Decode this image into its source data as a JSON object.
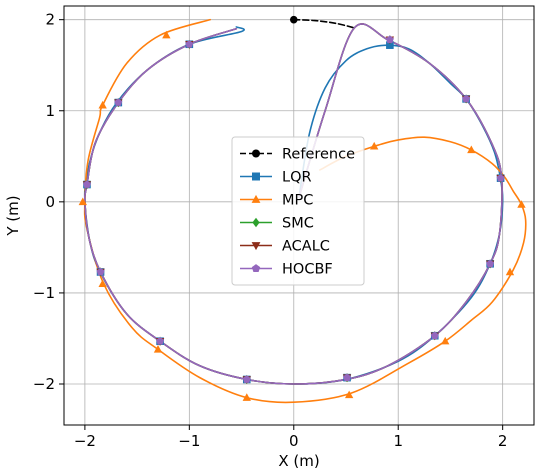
{
  "chart_data": {
    "type": "line",
    "title": "",
    "xlabel": "X (m)",
    "ylabel": "Y (m)",
    "xlim": [
      -2.2,
      2.3
    ],
    "ylim": [
      -2.45,
      2.15
    ],
    "xticks": [
      {
        "value": -2,
        "label": "−2"
      },
      {
        "value": -1,
        "label": "−1"
      },
      {
        "value": 0,
        "label": "0"
      },
      {
        "value": 1,
        "label": "1"
      },
      {
        "value": 2,
        "label": "2"
      }
    ],
    "yticks": [
      {
        "value": -2,
        "label": "−2"
      },
      {
        "value": -1,
        "label": "−1"
      },
      {
        "value": 0,
        "label": "0"
      },
      {
        "value": 1,
        "label": "1"
      },
      {
        "value": 2,
        "label": "2"
      }
    ],
    "grid": true,
    "legend_position": "center",
    "series": [
      {
        "name": "Reference",
        "color": "#000000",
        "dash": "dashed",
        "marker": "circle",
        "points": [
          [
            0.0,
            2.0
          ],
          [
            0.2,
            1.99
          ],
          [
            0.4,
            1.96
          ],
          [
            0.58,
            1.91
          ]
        ],
        "markers": [
          [
            0.0,
            2.0
          ]
        ]
      },
      {
        "name": "LQR",
        "color": "#1f77b4",
        "marker": "square",
        "points": [
          [
            0.05,
            0.05
          ],
          [
            0.15,
            0.75
          ],
          [
            0.3,
            1.25
          ],
          [
            0.5,
            1.55
          ],
          [
            0.7,
            1.68
          ],
          [
            0.9,
            1.72
          ],
          [
            1.1,
            1.68
          ],
          [
            1.3,
            1.52
          ],
          [
            1.5,
            1.3
          ],
          [
            1.65,
            1.13
          ],
          [
            1.8,
            0.85
          ],
          [
            1.92,
            0.55
          ],
          [
            1.98,
            0.25
          ],
          [
            2.0,
            0.0
          ],
          [
            1.97,
            -0.35
          ],
          [
            1.88,
            -0.68
          ],
          [
            1.7,
            -1.05
          ],
          [
            1.35,
            -1.47
          ],
          [
            1.0,
            -1.75
          ],
          [
            0.5,
            -1.95
          ],
          [
            0.0,
            -2.0
          ],
          [
            -0.45,
            -1.95
          ],
          [
            -0.9,
            -1.8
          ],
          [
            -1.28,
            -1.53
          ],
          [
            -1.6,
            -1.23
          ],
          [
            -1.85,
            -0.78
          ],
          [
            -1.95,
            -0.45
          ],
          [
            -2.0,
            0.0
          ],
          [
            -1.98,
            0.3
          ],
          [
            -1.88,
            0.7
          ],
          [
            -1.7,
            1.08
          ],
          [
            -1.4,
            1.45
          ],
          [
            -1.0,
            1.73
          ],
          [
            -0.5,
            1.87
          ],
          [
            -0.55,
            1.92
          ]
        ],
        "markers": [
          [
            0.92,
            1.72
          ],
          [
            1.65,
            1.13
          ],
          [
            1.98,
            0.26
          ],
          [
            1.88,
            -0.68
          ],
          [
            1.35,
            -1.47
          ],
          [
            0.51,
            -1.93
          ],
          [
            -0.45,
            -1.95
          ],
          [
            -1.28,
            -1.53
          ],
          [
            -1.85,
            -0.77
          ],
          [
            -1.98,
            0.19
          ],
          [
            -1.68,
            1.09
          ],
          [
            -1.0,
            1.73
          ]
        ]
      },
      {
        "name": "MPC",
        "color": "#ff7f0e",
        "marker": "triangle",
        "points": [
          [
            0.25,
            0.35
          ],
          [
            0.5,
            0.5
          ],
          [
            0.8,
            0.62
          ],
          [
            1.0,
            0.68
          ],
          [
            1.25,
            0.71
          ],
          [
            1.5,
            0.66
          ],
          [
            1.7,
            0.57
          ],
          [
            1.9,
            0.42
          ],
          [
            2.02,
            0.27
          ],
          [
            2.1,
            0.12
          ],
          [
            2.18,
            -0.03
          ],
          [
            2.22,
            -0.2
          ],
          [
            2.2,
            -0.45
          ],
          [
            2.1,
            -0.75
          ],
          [
            1.9,
            -1.1
          ],
          [
            1.7,
            -1.3
          ],
          [
            1.45,
            -1.53
          ],
          [
            1.1,
            -1.77
          ],
          [
            0.55,
            -2.1
          ],
          [
            0.0,
            -2.2
          ],
          [
            -0.45,
            -2.15
          ],
          [
            -0.9,
            -1.93
          ],
          [
            -1.3,
            -1.62
          ],
          [
            -1.55,
            -1.38
          ],
          [
            -1.82,
            -0.9
          ],
          [
            -1.98,
            -0.3
          ],
          [
            -2.0,
            0.0
          ],
          [
            -1.97,
            0.45
          ],
          [
            -1.86,
            0.92
          ],
          [
            -1.83,
            1.06
          ],
          [
            -1.6,
            1.52
          ],
          [
            -1.28,
            1.83
          ],
          [
            -0.8,
            2.0
          ]
        ],
        "markers": [
          [
            0.77,
            0.61
          ],
          [
            1.7,
            0.57
          ],
          [
            2.18,
            -0.03
          ],
          [
            2.07,
            -0.77
          ],
          [
            1.45,
            -1.53
          ],
          [
            0.53,
            -2.12
          ],
          [
            -0.45,
            -2.15
          ],
          [
            -1.3,
            -1.62
          ],
          [
            -1.83,
            -0.9
          ],
          [
            -2.02,
            0.0
          ],
          [
            -1.83,
            1.06
          ],
          [
            -1.22,
            1.83
          ]
        ]
      },
      {
        "name": "SMC",
        "color": "#2ca02c",
        "marker": "diamond",
        "points": [
          [
            0.05,
            0.05
          ],
          [
            0.3,
            1.0
          ],
          [
            0.58,
            1.91
          ],
          [
            0.9,
            1.78
          ],
          [
            1.3,
            1.52
          ],
          [
            1.65,
            1.13
          ],
          [
            1.9,
            0.63
          ],
          [
            1.99,
            0.26
          ],
          [
            1.97,
            -0.35
          ],
          [
            1.88,
            -0.68
          ],
          [
            1.65,
            -1.1
          ],
          [
            1.35,
            -1.47
          ],
          [
            0.9,
            -1.8
          ],
          [
            0.5,
            -1.95
          ],
          [
            0.0,
            -2.0
          ],
          [
            -0.45,
            -1.95
          ],
          [
            -0.9,
            -1.8
          ],
          [
            -1.28,
            -1.53
          ],
          [
            -1.6,
            -1.23
          ],
          [
            -1.85,
            -0.77
          ],
          [
            -1.96,
            -0.4
          ],
          [
            -2.0,
            0.0
          ],
          [
            -1.98,
            0.19
          ],
          [
            -1.9,
            0.65
          ],
          [
            -1.68,
            1.09
          ],
          [
            -1.4,
            1.45
          ],
          [
            -1.0,
            1.73
          ],
          [
            -0.55,
            1.9
          ]
        ],
        "markers": [
          [
            0.92,
            1.78
          ],
          [
            1.65,
            1.13
          ],
          [
            1.98,
            0.26
          ],
          [
            1.88,
            -0.68
          ],
          [
            1.35,
            -1.47
          ],
          [
            0.51,
            -1.93
          ],
          [
            -0.45,
            -1.95
          ],
          [
            -1.28,
            -1.53
          ],
          [
            -1.85,
            -0.77
          ],
          [
            -1.98,
            0.19
          ],
          [
            -1.68,
            1.09
          ],
          [
            -1.0,
            1.73
          ]
        ]
      },
      {
        "name": "ACALC",
        "color": "#8c2d19",
        "marker": "triangle-down",
        "points": [
          [
            0.05,
            0.05
          ],
          [
            0.3,
            1.0
          ],
          [
            0.58,
            1.91
          ],
          [
            0.9,
            1.78
          ],
          [
            1.3,
            1.52
          ],
          [
            1.65,
            1.13
          ],
          [
            1.9,
            0.63
          ],
          [
            1.99,
            0.26
          ],
          [
            1.97,
            -0.35
          ],
          [
            1.88,
            -0.68
          ],
          [
            1.65,
            -1.1
          ],
          [
            1.35,
            -1.47
          ],
          [
            0.9,
            -1.8
          ],
          [
            0.5,
            -1.95
          ],
          [
            0.0,
            -2.0
          ],
          [
            -0.45,
            -1.95
          ],
          [
            -0.9,
            -1.8
          ],
          [
            -1.28,
            -1.53
          ],
          [
            -1.6,
            -1.23
          ],
          [
            -1.85,
            -0.77
          ],
          [
            -1.96,
            -0.4
          ],
          [
            -2.0,
            0.0
          ],
          [
            -1.98,
            0.19
          ],
          [
            -1.9,
            0.65
          ],
          [
            -1.68,
            1.09
          ],
          [
            -1.4,
            1.45
          ],
          [
            -1.0,
            1.73
          ],
          [
            -0.55,
            1.9
          ]
        ],
        "markers": [
          [
            0.92,
            1.78
          ],
          [
            1.65,
            1.13
          ],
          [
            1.98,
            0.26
          ],
          [
            1.88,
            -0.68
          ],
          [
            1.35,
            -1.47
          ],
          [
            0.51,
            -1.93
          ],
          [
            -0.45,
            -1.95
          ],
          [
            -1.28,
            -1.53
          ],
          [
            -1.85,
            -0.77
          ],
          [
            -1.98,
            0.19
          ],
          [
            -1.68,
            1.09
          ],
          [
            -1.0,
            1.73
          ]
        ]
      },
      {
        "name": "HOCBF",
        "color": "#9467bd",
        "marker": "pentagon",
        "points": [
          [
            0.05,
            0.05
          ],
          [
            0.3,
            1.0
          ],
          [
            0.58,
            1.91
          ],
          [
            0.9,
            1.78
          ],
          [
            1.3,
            1.52
          ],
          [
            1.65,
            1.13
          ],
          [
            1.9,
            0.63
          ],
          [
            1.99,
            0.26
          ],
          [
            1.97,
            -0.35
          ],
          [
            1.88,
            -0.68
          ],
          [
            1.65,
            -1.1
          ],
          [
            1.35,
            -1.47
          ],
          [
            0.9,
            -1.8
          ],
          [
            0.5,
            -1.95
          ],
          [
            0.0,
            -2.0
          ],
          [
            -0.45,
            -1.95
          ],
          [
            -0.9,
            -1.8
          ],
          [
            -1.28,
            -1.53
          ],
          [
            -1.6,
            -1.23
          ],
          [
            -1.85,
            -0.77
          ],
          [
            -1.96,
            -0.4
          ],
          [
            -2.0,
            0.0
          ],
          [
            -1.98,
            0.19
          ],
          [
            -1.9,
            0.65
          ],
          [
            -1.68,
            1.09
          ],
          [
            -1.4,
            1.45
          ],
          [
            -1.0,
            1.73
          ],
          [
            -0.55,
            1.9
          ]
        ],
        "markers": [
          [
            0.92,
            1.78
          ],
          [
            1.65,
            1.13
          ],
          [
            1.98,
            0.26
          ],
          [
            1.88,
            -0.68
          ],
          [
            1.35,
            -1.47
          ],
          [
            0.51,
            -1.93
          ],
          [
            -0.45,
            -1.95
          ],
          [
            -1.28,
            -1.53
          ],
          [
            -1.85,
            -0.77
          ],
          [
            -1.98,
            0.19
          ],
          [
            -1.68,
            1.09
          ],
          [
            -1.0,
            1.73
          ]
        ]
      }
    ]
  }
}
